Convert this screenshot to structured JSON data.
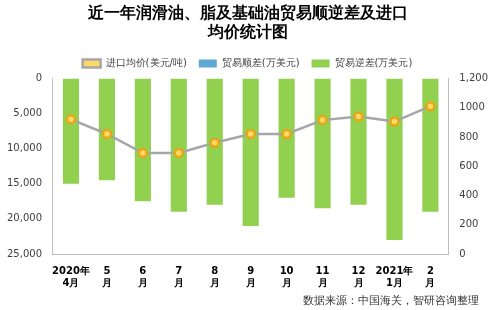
{
  "chart_data": {
    "type": "bar",
    "title": "近一年润滑油、脂及基础油贸易顺逆差及进口均价统计图",
    "categories": [
      "2020年4月",
      "5月",
      "6月",
      "7月",
      "8月",
      "9月",
      "10月",
      "11月",
      "12月",
      "2021年1月",
      "2月"
    ],
    "series": [
      {
        "name": "贸易顺差(万美元)",
        "type": "bar",
        "color": "#5fa8d3",
        "values": [
          0,
          0,
          0,
          0,
          0,
          0,
          0,
          0,
          0,
          0,
          0
        ]
      },
      {
        "name": "贸易逆差(万美元)",
        "type": "bar",
        "color": "#92d050",
        "values": [
          15000,
          14500,
          17500,
          19000,
          18000,
          21000,
          17000,
          18500,
          18000,
          23000,
          19000
        ]
      },
      {
        "name": "进口均价(美元/吨)",
        "type": "line",
        "axis": "y2",
        "color": "#a6a6a6",
        "marker": "circle",
        "values": [
          920,
          820,
          690,
          690,
          760,
          820,
          820,
          915,
          940,
          905,
          1010
        ]
      }
    ],
    "ylim": [
      25000,
      0
    ],
    "yticks": [
      0,
      {
        "value": 5000,
        "label": "5,000"
      },
      {
        "value": 10000,
        "label": "10,000"
      },
      {
        "value": 15000,
        "label": "15,000"
      },
      {
        "value": 20000,
        "label": "20,000"
      },
      {
        "value": 25000,
        "label": "25,000"
      }
    ],
    "y2lim": [
      0,
      1200
    ],
    "y2ticks": [
      0,
      200,
      400,
      600,
      800,
      1000,
      {
        "value": 1200,
        "label": "1,200"
      }
    ],
    "grid": false,
    "legend": "top",
    "annotations": [
      "数据来源：中国海关，智研咨询整理"
    ]
  }
}
